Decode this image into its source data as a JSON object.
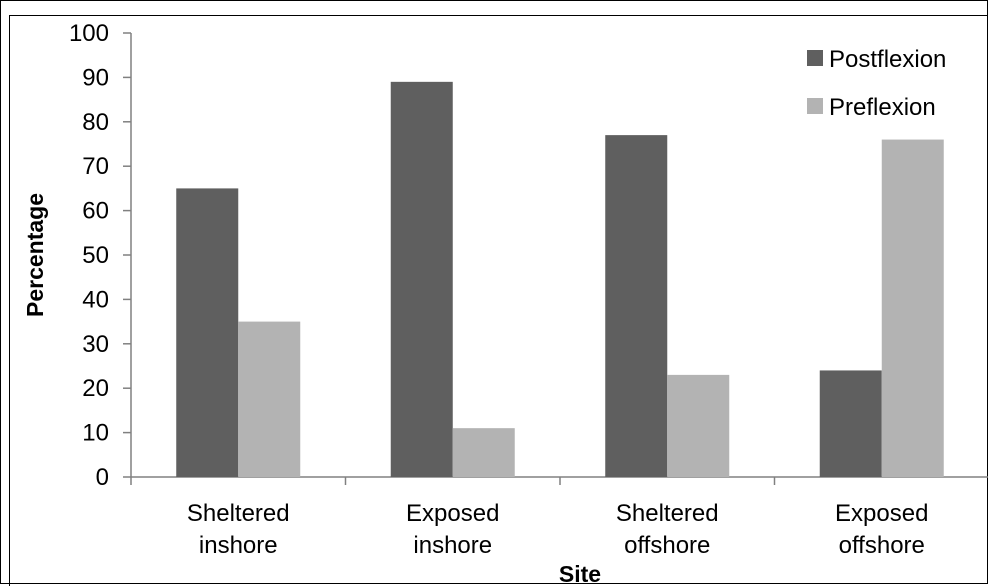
{
  "chart_data": {
    "type": "bar",
    "categories": [
      [
        "Sheltered",
        "inshore"
      ],
      [
        "Exposed",
        "inshore"
      ],
      [
        "Sheltered",
        "offshore"
      ],
      [
        "Exposed",
        "offshore"
      ]
    ],
    "series": [
      {
        "name": "Postflexion",
        "values": [
          65,
          89,
          77,
          24
        ],
        "color": "#5f5f5f"
      },
      {
        "name": "Preflexion",
        "values": [
          35,
          11,
          23,
          76
        ],
        "color": "#b3b3b3"
      }
    ],
    "xlabel": "Site",
    "ylabel": "Percentage",
    "ylim": [
      0,
      100
    ],
    "yticks": [
      0,
      10,
      20,
      30,
      40,
      50,
      60,
      70,
      80,
      90,
      100
    ],
    "grid": false,
    "legend": "top-right"
  }
}
